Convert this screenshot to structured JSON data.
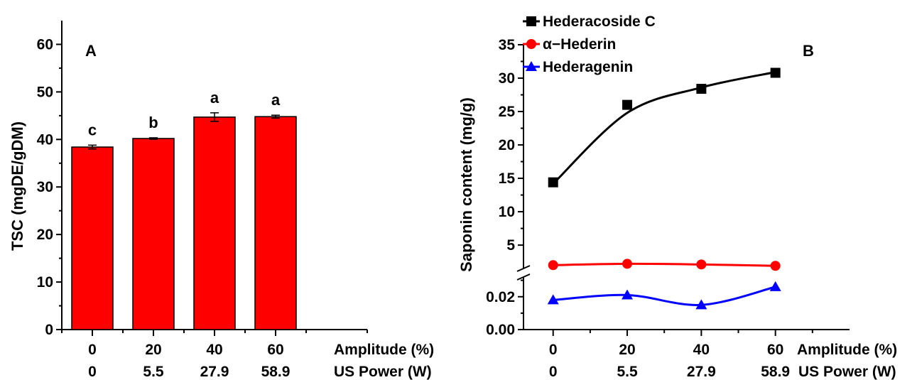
{
  "chart_data": [
    {
      "panel": "A",
      "type": "bar",
      "ylabel": "TSC (mgDE/gDM)",
      "ylim": [
        0,
        65
      ],
      "yticks": [
        0,
        10,
        20,
        30,
        40,
        50,
        60
      ],
      "x_amplitude": [
        "0",
        "20",
        "40",
        "60"
      ],
      "x_power": [
        "0",
        "5.5",
        "27.9",
        "58.9"
      ],
      "x_amplitude_label": "Amplitude (%)",
      "x_power_label": "US Power (W)",
      "values": [
        38.4,
        40.2,
        44.7,
        44.8
      ],
      "errors": [
        0.4,
        0.15,
        0.9,
        0.3
      ],
      "significance": [
        "c",
        "b",
        "a",
        "a"
      ],
      "bar_color": "#ff0000",
      "grid": false
    },
    {
      "panel": "B",
      "type": "line",
      "ylabel": "Saponin content (mg/g)",
      "x": [
        0,
        20,
        40,
        60
      ],
      "x_amplitude": [
        "0",
        "20",
        "40",
        "60"
      ],
      "x_power": [
        "0",
        "5.5",
        "27.9",
        "58.9"
      ],
      "x_amplitude_label": "Amplitude (%)",
      "x_power_label": "US Power (W)",
      "y_break": true,
      "upper_yticks": [
        5,
        10,
        15,
        20,
        25,
        30,
        35
      ],
      "lower_yticks": [
        "0.00",
        "0.02"
      ],
      "series": [
        {
          "name": "Hederacoside C",
          "values": [
            14.4,
            26.0,
            28.4,
            30.8
          ],
          "color": "#000000",
          "marker": "square"
        },
        {
          "name": "α−Hederin",
          "values": [
            2.0,
            2.2,
            2.1,
            1.9
          ],
          "color": "#ff0000",
          "marker": "circle"
        },
        {
          "name": "Hederagenin",
          "values": [
            0.018,
            0.021,
            0.015,
            0.026
          ],
          "color": "#0000ff",
          "marker": "triangle"
        }
      ],
      "legend_position": "top-left",
      "grid": false
    }
  ]
}
